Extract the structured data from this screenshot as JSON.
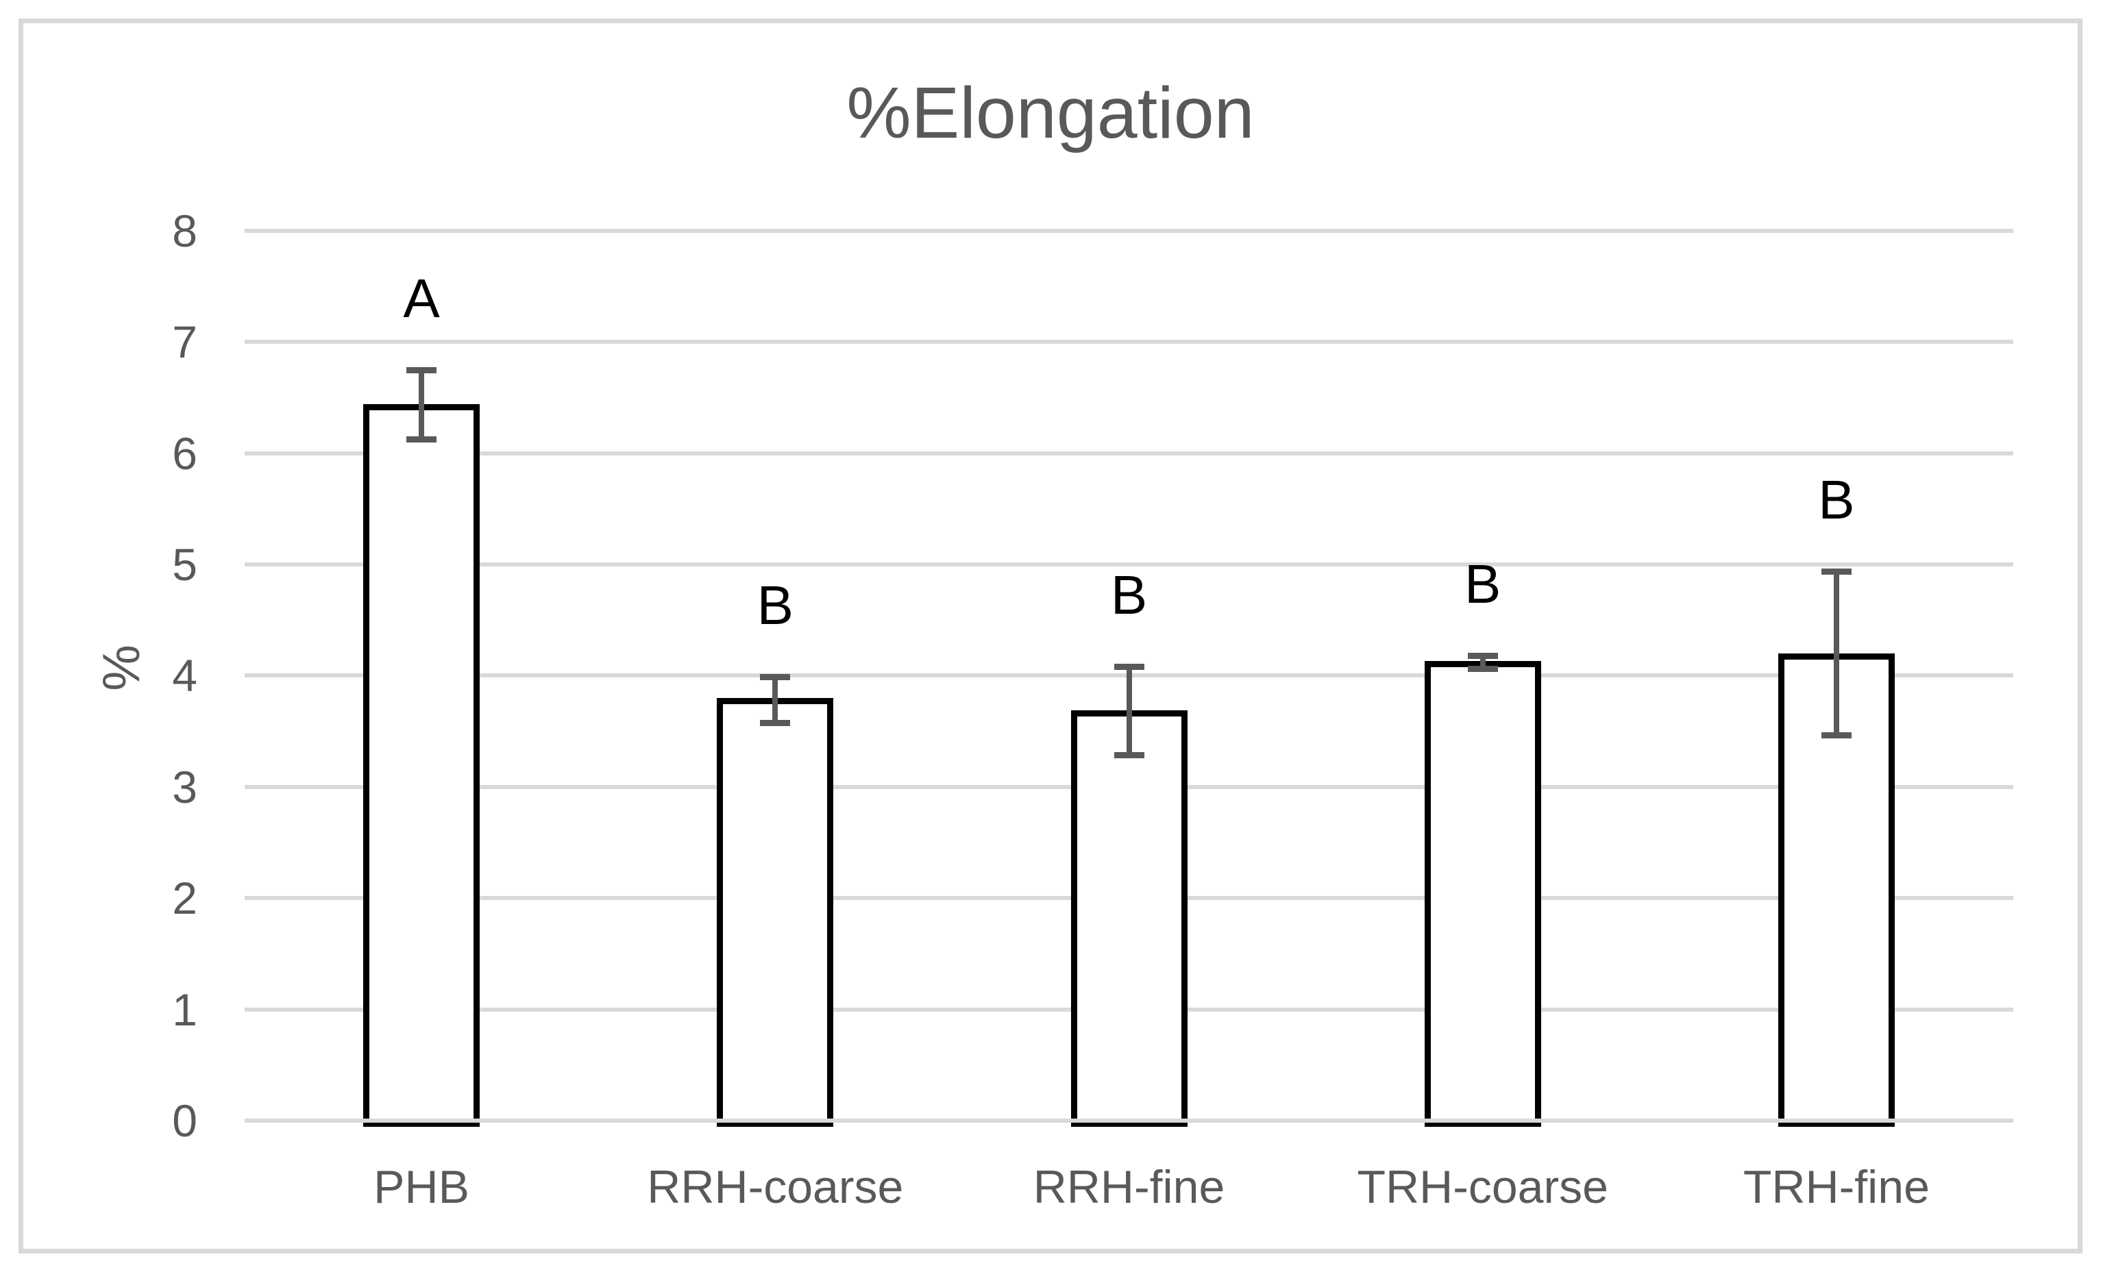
{
  "title": "%Elongation",
  "y_axis": {
    "label": "%",
    "ticks": [
      8,
      7,
      6,
      5,
      4,
      3,
      2,
      1,
      0
    ]
  },
  "x_axis": {
    "categories": [
      "PHB",
      "RRH-coarse",
      "RRH-fine",
      "TRH-coarse",
      "TRH-fine"
    ]
  },
  "chart_data": {
    "type": "bar",
    "title": "%Elongation",
    "xlabel": "",
    "ylabel": "%",
    "ylim": [
      0,
      8
    ],
    "ytick_interval": 1,
    "grid": true,
    "legend": false,
    "categories": [
      "PHB",
      "RRH-coarse",
      "RRH-fine",
      "TRH-coarse",
      "TRH-fine"
    ],
    "values": [
      6.44,
      3.8,
      3.69,
      4.13,
      4.2
    ],
    "error_bars": {
      "top": [
        6.75,
        3.99,
        4.08,
        4.18,
        4.94
      ],
      "bottom": [
        6.12,
        3.57,
        3.28,
        4.06,
        3.46
      ]
    },
    "significance_letters": [
      "A",
      "B",
      "B",
      "B",
      "B"
    ],
    "bar_fill": "#FFFFFF",
    "bar_border_color": "#000000"
  },
  "colors": {
    "background": "#FFFFFF",
    "gridline": "#D9D9D9",
    "figure_border": "#D9D9D9",
    "axis_text": "#595959",
    "error_bar": "#595959",
    "annotation_text": "#000000"
  }
}
